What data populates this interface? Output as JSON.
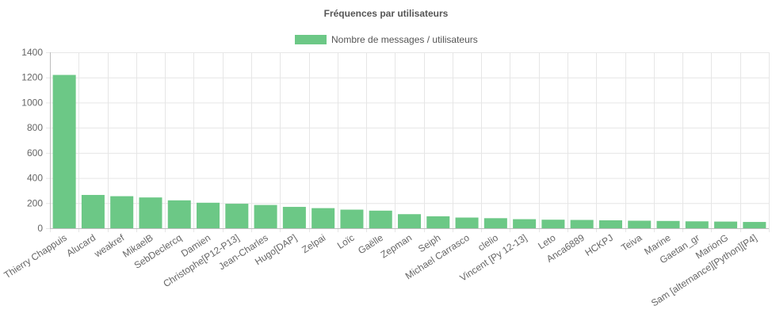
{
  "chart_data": {
    "type": "bar",
    "title": "Fréquences par utilisateurs",
    "legend": {
      "position": "top",
      "label": "Nombre de messages / utilisateurs"
    },
    "bar_color": "#6cc886",
    "categories": [
      "Thierry Chappuis",
      "Alucard",
      "weakref",
      "MikaelB",
      "SebDeclercq",
      "Damien",
      "Christophe[P12-P13]",
      "Jean-Charles",
      "Hugo[DAP]",
      "Zelpai",
      "Loïc",
      "Gaëlle",
      "Zepman",
      "Seiph",
      "Michael Carrasco",
      "clelio",
      "Vincent [Py 12-13]",
      "Leto",
      "Anca6889",
      "HCKPJ",
      "Teiva",
      "Marine",
      "Gaetan_gr",
      "MarionG",
      "Sam [alternance][Python][P4]"
    ],
    "values": [
      1220,
      265,
      255,
      245,
      222,
      203,
      195,
      185,
      170,
      160,
      148,
      140,
      112,
      95,
      85,
      80,
      72,
      68,
      66,
      63,
      60,
      58,
      55,
      53,
      50
    ],
    "ylim": [
      0,
      1400
    ],
    "yticks": [
      0,
      200,
      400,
      600,
      800,
      1000,
      1200,
      1400
    ],
    "grid": true,
    "xlabel": "",
    "ylabel": ""
  }
}
